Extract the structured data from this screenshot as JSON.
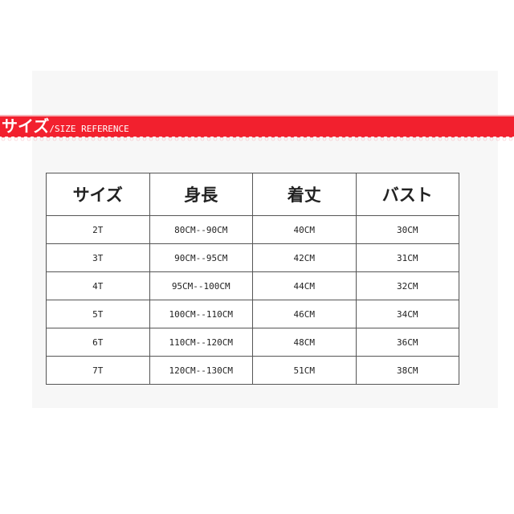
{
  "banner": {
    "title_jp": "サイズ",
    "title_en": "/SIZE REFERENCE",
    "color": "#f2202e"
  },
  "table": {
    "headers": [
      "サイズ",
      "身長",
      "着丈",
      "バスト"
    ],
    "rows": [
      [
        "2T",
        "80CM--90CM",
        "40CM",
        "30CM"
      ],
      [
        "3T",
        "90CM--95CM",
        "42CM",
        "31CM"
      ],
      [
        "4T",
        "95CM--100CM",
        "44CM",
        "32CM"
      ],
      [
        "5T",
        "100CM--110CM",
        "46CM",
        "34CM"
      ],
      [
        "6T",
        "110CM--120CM",
        "48CM",
        "36CM"
      ],
      [
        "7T",
        "120CM--130CM",
        "51CM",
        "38CM"
      ]
    ]
  }
}
